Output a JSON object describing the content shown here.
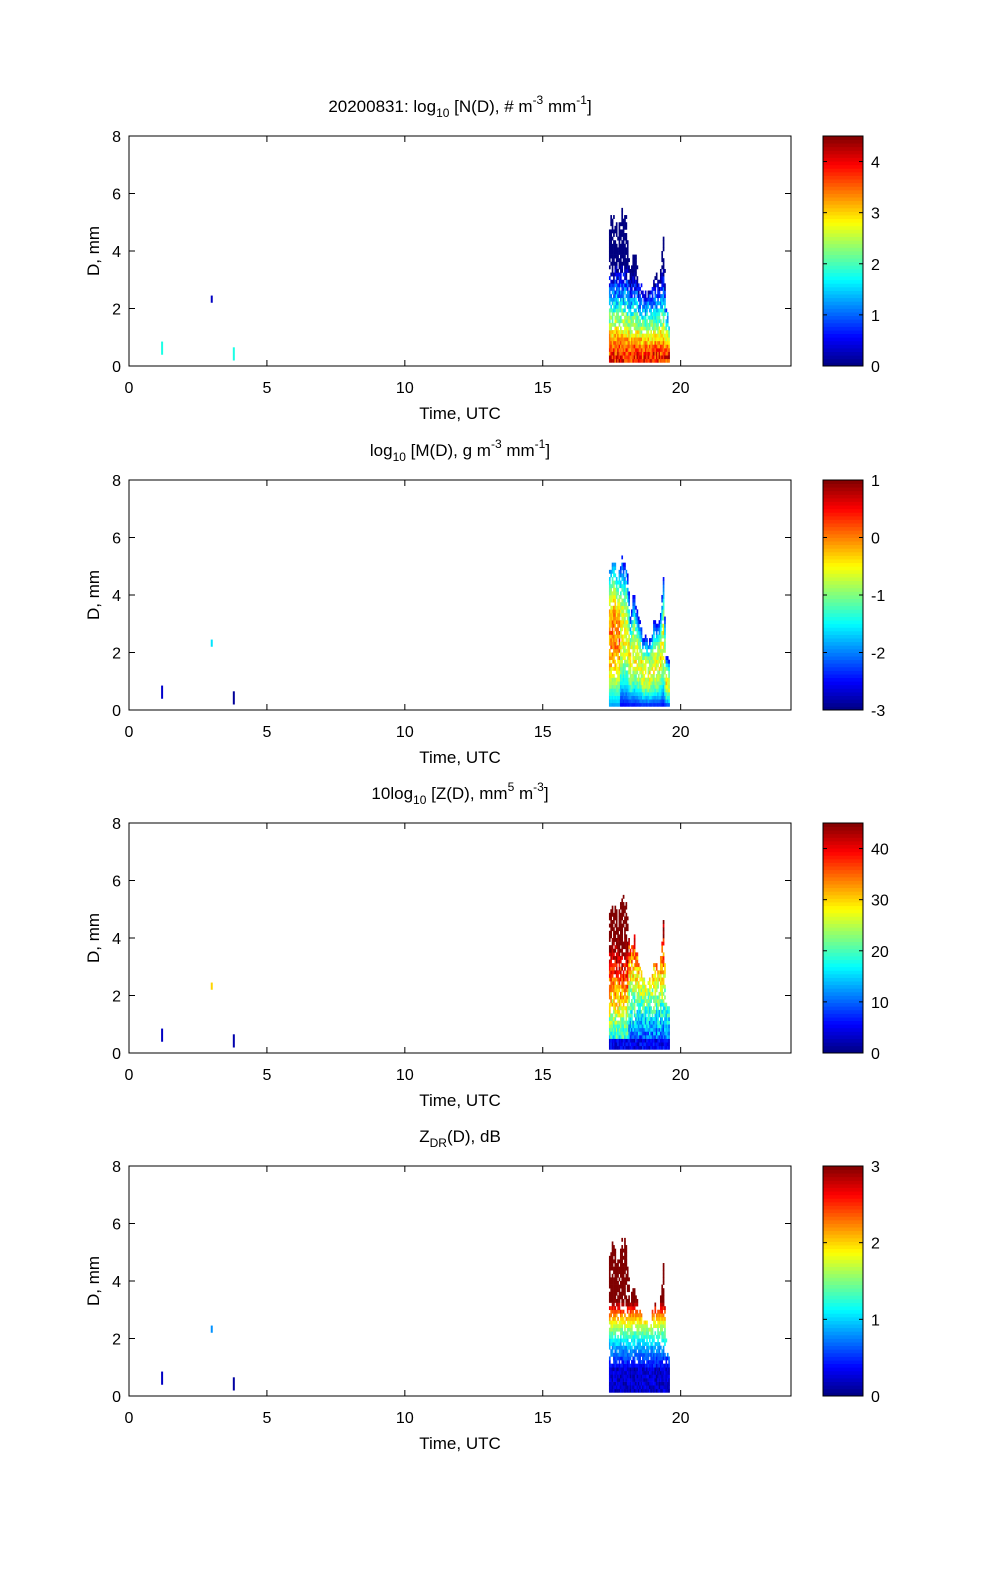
{
  "figure": {
    "date": "20200831",
    "time_range_label": "0-24 UTC"
  },
  "chart_data": [
    {
      "type": "heatmap",
      "title_parts": [
        "20200831: log",
        "10",
        " [N(D), # m",
        "-3",
        " mm",
        "-1",
        "]"
      ],
      "title_roles": [
        "n",
        "sub",
        "n",
        "sup",
        "n",
        "sup",
        "n"
      ],
      "xlabel": "Time, UTC",
      "ylabel": "D, mm",
      "xlim": [
        0,
        24
      ],
      "ylim": [
        0,
        8
      ],
      "xticks": [
        0,
        5,
        10,
        15,
        20
      ],
      "yticks": [
        0,
        2,
        4,
        6,
        8
      ],
      "colorbar": {
        "min": 0,
        "max": 4.5,
        "ticks": [
          0,
          1,
          2,
          3,
          4
        ],
        "tick_labels": [
          "0",
          "1",
          "2",
          "3",
          "4"
        ]
      },
      "variable": "N",
      "sparse_points": [
        {
          "t": 1.2,
          "d": 0.6,
          "v": 1.8
        },
        {
          "t": 3.0,
          "d": 2.2,
          "v": 0.3
        },
        {
          "t": 3.8,
          "d": 0.4,
          "v": 1.8
        }
      ],
      "event": {
        "t_start": 17.4,
        "t_end": 19.6
      }
    },
    {
      "type": "heatmap",
      "title_parts": [
        "log",
        "10",
        " [M(D), g m",
        "-3",
        " mm",
        "-1",
        "]"
      ],
      "title_roles": [
        "n",
        "sub",
        "n",
        "sup",
        "n",
        "sup",
        "n"
      ],
      "xlabel": "Time, UTC",
      "ylabel": "D, mm",
      "xlim": [
        0,
        24
      ],
      "ylim": [
        0,
        8
      ],
      "xticks": [
        0,
        5,
        10,
        15,
        20
      ],
      "yticks": [
        0,
        2,
        4,
        6,
        8
      ],
      "colorbar": {
        "min": -3,
        "max": 1,
        "ticks": [
          -3,
          -2,
          -1,
          0,
          1
        ],
        "tick_labels": [
          "-3",
          "-2",
          "-1",
          "0",
          "1"
        ]
      },
      "variable": "M",
      "sparse_points": [
        {
          "t": 1.2,
          "d": 0.6,
          "v": -2.7
        },
        {
          "t": 3.0,
          "d": 2.2,
          "v": -1.6
        },
        {
          "t": 3.8,
          "d": 0.4,
          "v": -2.9
        }
      ],
      "event": {
        "t_start": 17.4,
        "t_end": 19.6
      }
    },
    {
      "type": "heatmap",
      "title_parts": [
        "10log",
        "10",
        " [Z(D),  mm",
        "5",
        " m",
        "-3",
        "]"
      ],
      "title_roles": [
        "n",
        "sub",
        "n",
        "sup",
        "n",
        "sup",
        "n"
      ],
      "xlabel": "Time, UTC",
      "ylabel": "D, mm",
      "xlim": [
        0,
        24
      ],
      "ylim": [
        0,
        8
      ],
      "xticks": [
        0,
        5,
        10,
        15,
        20
      ],
      "yticks": [
        0,
        2,
        4,
        6,
        8
      ],
      "colorbar": {
        "min": 0,
        "max": 45,
        "ticks": [
          0,
          10,
          20,
          30,
          40
        ],
        "tick_labels": [
          "0",
          "10",
          "20",
          "30",
          "40"
        ]
      },
      "variable": "Z",
      "sparse_points": [
        {
          "t": 1.2,
          "d": 0.6,
          "v": 3
        },
        {
          "t": 3.0,
          "d": 2.2,
          "v": 30
        },
        {
          "t": 3.8,
          "d": 0.4,
          "v": 2
        }
      ],
      "event": {
        "t_start": 17.4,
        "t_end": 19.6
      }
    },
    {
      "type": "heatmap",
      "title_parts": [
        "Z",
        "DR",
        "(D), dB"
      ],
      "title_roles": [
        "n",
        "sub",
        "n"
      ],
      "xlabel": "Time, UTC",
      "ylabel": "D, mm",
      "xlim": [
        0,
        24
      ],
      "ylim": [
        0,
        8
      ],
      "xticks": [
        0,
        5,
        10,
        15,
        20
      ],
      "yticks": [
        0,
        2,
        4,
        6,
        8
      ],
      "colorbar": {
        "min": 0,
        "max": 3,
        "ticks": [
          0,
          1,
          2,
          3
        ],
        "tick_labels": [
          "0",
          "1",
          "2",
          "3"
        ]
      },
      "variable": "ZDR",
      "sparse_points": [
        {
          "t": 1.2,
          "d": 0.6,
          "v": 0.2
        },
        {
          "t": 3.0,
          "d": 2.2,
          "v": 0.8
        },
        {
          "t": 3.8,
          "d": 0.4,
          "v": 0.1
        }
      ],
      "event": {
        "t_start": 17.4,
        "t_end": 19.6
      }
    }
  ]
}
